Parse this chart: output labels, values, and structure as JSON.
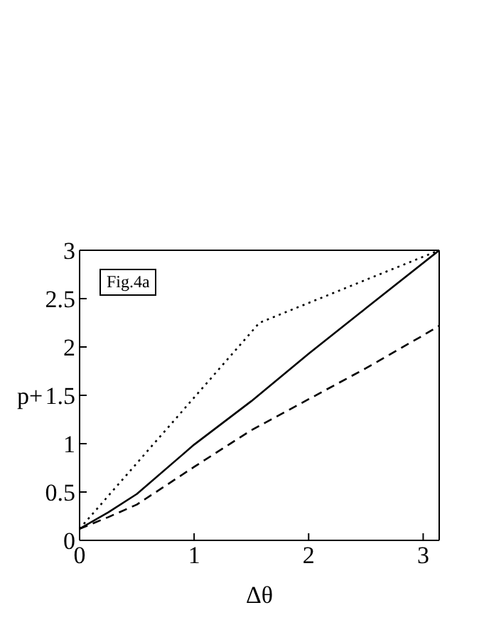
{
  "chart_data": {
    "type": "line",
    "xlabel": "Δθ",
    "ylabel": "p+",
    "annotations": [
      "Fig.4a"
    ],
    "xlim": [
      0,
      3.14
    ],
    "xticks": [
      0,
      1,
      2,
      3
    ],
    "ylim": [
      0,
      3
    ],
    "yticks": [
      0,
      0.5,
      1,
      1.5,
      2,
      2.5,
      3
    ],
    "marker": "none",
    "series": [
      {
        "color": "#000000",
        "line_style": "solid",
        "x": [
          0,
          0.25,
          0.5,
          1,
          1.5,
          2,
          2.5,
          3.14
        ],
        "values": [
          0.12,
          0.29,
          0.48,
          0.99,
          1.44,
          1.93,
          2.4,
          3
        ]
      },
      {
        "color": "#000000",
        "line_style": "dashed",
        "x": [
          0,
          0.25,
          0.5,
          1,
          1.5,
          2,
          2.5,
          3,
          3.14
        ],
        "values": [
          0.12,
          0.24,
          0.37,
          0.76,
          1.14,
          1.46,
          1.78,
          2.12,
          2.22
        ]
      },
      {
        "color": "#000000",
        "line_style": "dotted",
        "x": [
          0,
          1.57,
          3.14
        ],
        "values": [
          0.12,
          2.25,
          3
        ]
      }
    ]
  }
}
